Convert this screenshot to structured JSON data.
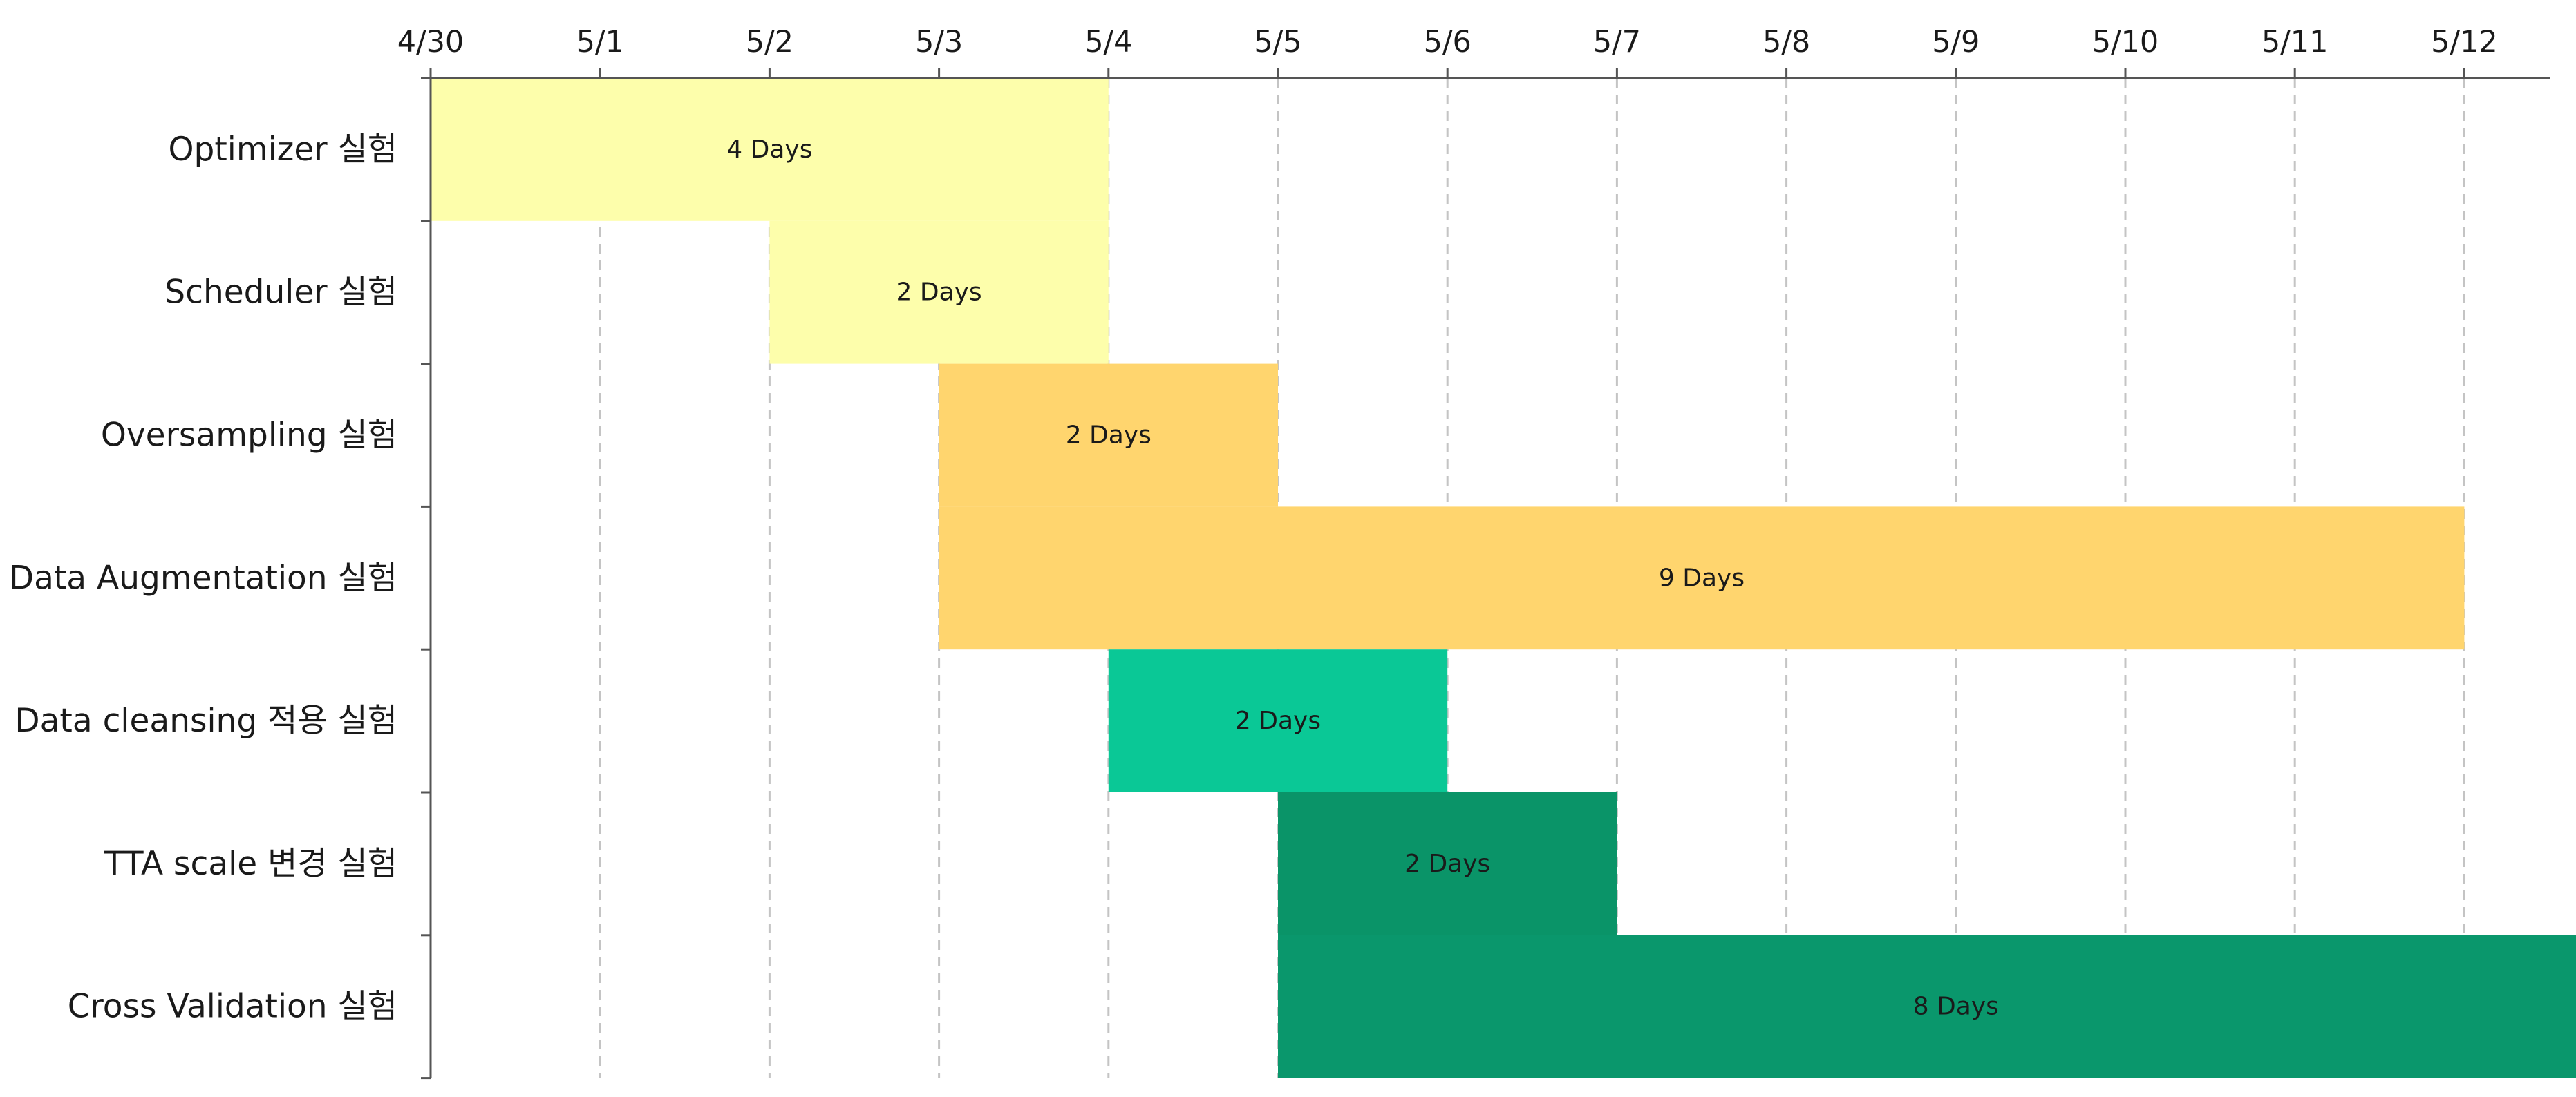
{
  "chart_data": {
    "type": "bar",
    "orientation": "horizontal-gantt",
    "title": "",
    "xlabel": "",
    "ylabel": "",
    "x_ticks": [
      "4/30",
      "5/1",
      "5/2",
      "5/3",
      "5/4",
      "5/5",
      "5/6",
      "5/7",
      "5/8",
      "5/9",
      "5/10",
      "5/11",
      "5/12"
    ],
    "x_axis_position": "top",
    "x_range": [
      0,
      12.5
    ],
    "grid": "vertical dashed",
    "legend": "none",
    "tasks": [
      {
        "name": "Optimizer 실험",
        "start": "4/30",
        "days": 4,
        "label": "4 Days",
        "color": "#FDFEAB"
      },
      {
        "name": "Scheduler 실험",
        "start": "5/2",
        "days": 2,
        "label": "2 Days",
        "color": "#FDFEAB"
      },
      {
        "name": "Oversampling 실험",
        "start": "5/3",
        "days": 2,
        "label": "2 Days",
        "color": "#FFD56E"
      },
      {
        "name": "Data Augmentation 실험",
        "start": "5/3",
        "days": 9,
        "label": "9 Days",
        "color": "#FFD56E"
      },
      {
        "name": "Data cleansing 적용 실험",
        "start": "5/4",
        "days": 2,
        "label": "2 Days",
        "color": "#0AC896"
      },
      {
        "name": "TTA scale 변경 실험",
        "start": "5/5",
        "days": 2,
        "label": "2 Days",
        "color": "#0A9468"
      },
      {
        "name": "Cross Validation 실험",
        "start": "5/5",
        "days": 8,
        "label": "8 Days",
        "color": "#0A976C"
      }
    ]
  }
}
